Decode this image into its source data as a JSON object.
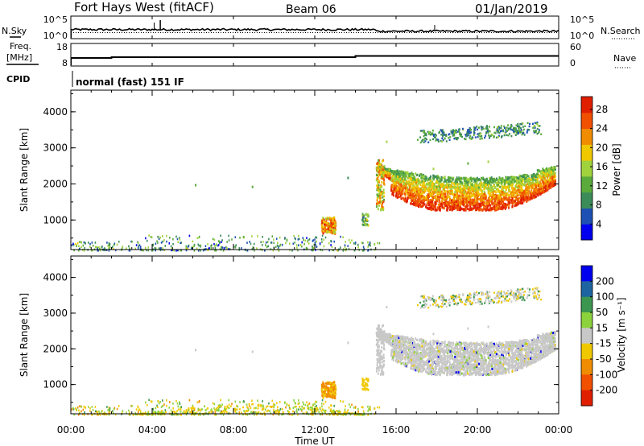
{
  "header": {
    "station": "Fort Hays West (fitACF)",
    "beam": "Beam 06",
    "date": "01/Jan/2019"
  },
  "top_panels": {
    "nsky_label": "N.Sky",
    "nsearch_label": "N.Search",
    "noise_ticks_left": [
      "10^5",
      "10^0"
    ],
    "noise_ticks_right": [
      "10^5",
      "10^0"
    ],
    "freq_label_1": "Freq.",
    "freq_label_2": "[MHz]",
    "freq_ticks": [
      "18",
      "8"
    ],
    "nave_label": "Nave",
    "nave_ticks": [
      "60",
      "0"
    ],
    "cpid_label": "CPID",
    "cpid_text": "normal (fast) 151 IF"
  },
  "colors": {
    "power_scale": [
      "#0000ee",
      "#1e50b4",
      "#3c8c5a",
      "#5aaa3c",
      "#a0d23c",
      "#f0c800",
      "#f08c00",
      "#f05000",
      "#e01e00"
    ],
    "velocity_scale": [
      "#e01e00",
      "#f05000",
      "#f08c00",
      "#f0c800",
      "#c8c8c8",
      "#8cd23c",
      "#3c9650",
      "#1e64a0",
      "#0000ee"
    ],
    "missing": "#ffffff"
  },
  "chart_data": [
    {
      "type": "heatmap",
      "title": "",
      "xlabel": "Time UT",
      "ylabel": "Slant Range [km]",
      "xlim": [
        "00:00",
        "24:00"
      ],
      "ylim": [
        180,
        4600
      ],
      "x_ticks": [
        "00:00",
        "04:00",
        "08:00",
        "12:00",
        "16:00",
        "20:00",
        "00:00"
      ],
      "y_ticks": [
        "1000",
        "2000",
        "3000",
        "4000"
      ],
      "colorbar": {
        "label": "Power [dB]",
        "ticks": [
          "4",
          "8",
          "12",
          "16",
          "20",
          "24",
          "28"
        ],
        "range": [
          0,
          30
        ]
      },
      "regions": [
        {
          "t_start": 15.0,
          "t_end": 23.8,
          "range_km": [
            1300,
            2500
          ],
          "value": "14-30 dB"
        },
        {
          "t_start": 17.0,
          "t_end": 23.1,
          "range_km": [
            3100,
            3600
          ],
          "value": "6-12 dB"
        },
        {
          "t_start": 12.3,
          "t_end": 13.0,
          "range_km": [
            650,
            1100
          ],
          "value": "14-28 dB"
        },
        {
          "t_start": 0.0,
          "t_end": 15.0,
          "range_km": [
            180,
            600
          ],
          "value": "4-16 dB"
        }
      ]
    },
    {
      "type": "heatmap",
      "title": "",
      "xlabel": "Time UT",
      "ylabel": "Slant Range [km]",
      "xlim": [
        "00:00",
        "24:00"
      ],
      "ylim": [
        180,
        4600
      ],
      "x_ticks": [
        "00:00",
        "04:00",
        "08:00",
        "12:00",
        "16:00",
        "20:00",
        "00:00"
      ],
      "y_ticks": [
        "1000",
        "2000",
        "3000",
        "4000"
      ],
      "colorbar": {
        "label": "Velocity [m s⁻¹]",
        "ticks": [
          "200",
          "100",
          "50",
          "15",
          "-15",
          "-50",
          "-100",
          "-200"
        ],
        "range": [
          -250,
          250
        ]
      },
      "regions": [
        {
          "t_start": 15.0,
          "t_end": 23.8,
          "range_km": [
            1300,
            2500
          ],
          "value": "-15 to 15 m/s (ground scatter)"
        },
        {
          "t_start": 17.0,
          "t_end": 23.1,
          "range_km": [
            3100,
            3600
          ],
          "value": "-50 to 15 m/s"
        },
        {
          "t_start": 12.3,
          "t_end": 13.0,
          "range_km": [
            650,
            1100
          ],
          "value": "-50 to -100 m/s"
        },
        {
          "t_start": 0.0,
          "t_end": 15.0,
          "range_km": [
            180,
            600
          ],
          "value": "-50 to 50 m/s"
        }
      ]
    }
  ],
  "footer": {
    "time_label": "Time UT"
  }
}
